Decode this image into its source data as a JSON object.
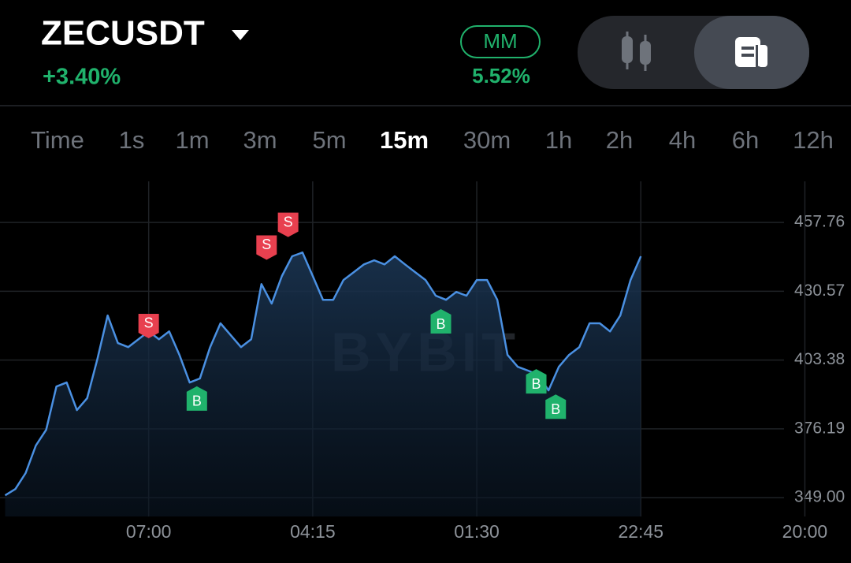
{
  "header": {
    "symbol": "ZECUSDT",
    "change": "+3.40%",
    "badge": "MM",
    "badge_value": "5.52%"
  },
  "intervals": [
    "Time",
    "1s",
    "1m",
    "3m",
    "5m",
    "15m",
    "30m",
    "1h",
    "2h",
    "4h",
    "6h",
    "12h"
  ],
  "active_interval": 5,
  "chart_data": {
    "type": "line",
    "watermark": "BYBIT",
    "x": [
      -14,
      -13,
      -12,
      -11,
      -10,
      -9,
      -8,
      -7,
      -6,
      -5,
      -4,
      -3,
      -2,
      -1,
      0,
      1,
      2,
      3,
      4,
      5,
      6,
      7,
      8,
      9,
      10,
      11,
      12,
      13,
      14,
      15,
      16,
      17,
      18,
      19,
      20,
      21,
      22,
      23,
      24,
      25,
      26,
      27,
      28,
      29,
      30,
      31,
      32,
      33,
      34,
      35,
      36,
      37,
      38,
      39,
      40,
      41,
      42,
      43,
      44,
      45,
      46,
      47,
      48
    ],
    "series": [
      {
        "color": "#4a90e2",
        "values": [
          349.9,
          352.4,
          358.7,
          369.6,
          375.8,
          392.9,
          394.5,
          383.6,
          388.3,
          403.8,
          421.0,
          410.1,
          408.5,
          411.6,
          414.7,
          411.6,
          414.7,
          405.4,
          394.5,
          396.1,
          408.5,
          417.9,
          413.2,
          408.5,
          411.6,
          433.4,
          425.7,
          436.6,
          444.4,
          445.9,
          436.6,
          427.2,
          427.2,
          435.0,
          438.1,
          441.2,
          442.8,
          441.2,
          444.4,
          441.2,
          438.1,
          435.0,
          428.8,
          427.2,
          430.3,
          428.8,
          435.0,
          435.0,
          427.2,
          405.4,
          400.7,
          399.2,
          397.6,
          391.4,
          400.7,
          405.4,
          408.5,
          417.9,
          417.9,
          414.7,
          421.0,
          435.0,
          444.4
        ]
      }
    ],
    "xlim": [
      -14.5,
      68.5
    ],
    "xticks": [
      {
        "value": 0,
        "label": "07:00"
      },
      {
        "value": 16,
        "label": "04:15"
      },
      {
        "value": 32,
        "label": "01:30"
      },
      {
        "value": 48,
        "label": "22:45"
      },
      {
        "value": 64,
        "label": "20:00"
      }
    ],
    "ylim": [
      340,
      474
    ],
    "yticks": [
      {
        "value": 349,
        "label": "349.00"
      },
      376.19,
      403.38,
      430.57,
      457.76
    ],
    "grid": true,
    "markers": [
      {
        "label": "S",
        "x": 0,
        "price": 412,
        "color": "#e8404f"
      },
      {
        "label": "S",
        "x": 11.5,
        "price": 443,
        "color": "#e8404f"
      },
      {
        "label": "S",
        "x": 13.6,
        "price": 452,
        "color": "#e8404f"
      },
      {
        "label": "B",
        "x": 4.7,
        "price": 393,
        "color": "#20b26c"
      },
      {
        "label": "B",
        "x": 28.5,
        "price": 423.5,
        "color": "#20b26c"
      },
      {
        "label": "B",
        "x": 37.8,
        "price": 399.8,
        "color": "#20b26c"
      },
      {
        "label": "B",
        "x": 39.7,
        "price": 389.8,
        "color": "#20b26c"
      }
    ]
  }
}
